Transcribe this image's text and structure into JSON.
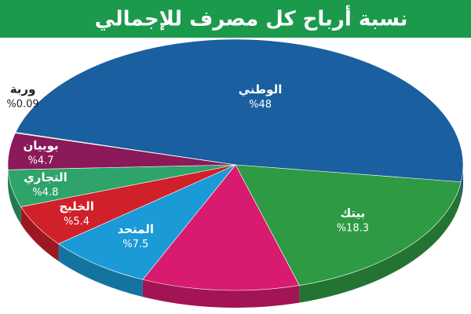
{
  "chart_data": {
    "type": "pie",
    "title": "نسبة أرباح كل مصرف للإجمالي",
    "categories": [
      "الوطني",
      "بيتك",
      null,
      "المتحد",
      "الخليج",
      "التجاري",
      "بوبيان",
      "وربة"
    ],
    "values": [
      48,
      18.3,
      11.2,
      7.5,
      5.4,
      4.8,
      4.7,
      0.09
    ],
    "value_labels": [
      "%48",
      "%18.3",
      null,
      "%7.5",
      "%5.4",
      "%4.8",
      "%4.7",
      "%0.09"
    ],
    "colors": [
      "#1a5fa0",
      "#2e9a44",
      "#d81b6e",
      "#1a9ad6",
      "#d0202a",
      "#2ea36a",
      "#8a1a5a",
      "#d8d030"
    ]
  }
}
